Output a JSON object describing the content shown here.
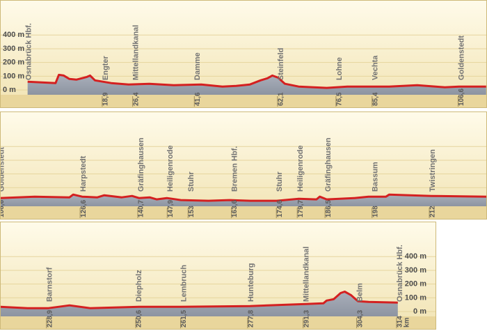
{
  "chart_data": [
    {
      "type": "line",
      "color": "#d42020",
      "xlim": [
        -6.8,
        113.2
      ],
      "ylim": [
        -35,
        655
      ],
      "yticks": [
        {
          "value": 0,
          "label": "0 m"
        },
        {
          "value": 100,
          "label": "100 m"
        },
        {
          "value": 200,
          "label": "200 m"
        },
        {
          "value": 300,
          "label": "300 m"
        },
        {
          "value": 400,
          "label": "400 m"
        }
      ],
      "yaxis_side": "left",
      "grid": true,
      "x": [
        0,
        6.9,
        7.7,
        8.9,
        10.3,
        12.0,
        14.6,
        15.4,
        16.6,
        20.6,
        24.9,
        30.0,
        36.0,
        42.8,
        48.0,
        51.4,
        54.8,
        57.4,
        59.1,
        60.3,
        61.7,
        63.4,
        66.8,
        73.7,
        78.8,
        84.0,
        89.1,
        96.0,
        102.8,
        106.3,
        113.0
      ],
      "values": [
        60,
        50,
        110,
        105,
        80,
        75,
        95,
        105,
        70,
        50,
        40,
        45,
        35,
        40,
        25,
        30,
        40,
        70,
        85,
        105,
        90,
        45,
        25,
        15,
        25,
        25,
        25,
        35,
        20,
        25,
        25
      ],
      "stations": [
        {
          "name": "Osnabrück Hbf.",
          "km": 0
        },
        {
          "name": "Engter",
          "km": 18.9
        },
        {
          "name": "Mittellandkanal",
          "km": 26.4
        },
        {
          "name": "Damme",
          "km": 41.6
        },
        {
          "name": "Steinfeld",
          "km": 62.1
        },
        {
          "name": "Lohne",
          "km": 76.5
        },
        {
          "name": "Vechta",
          "km": 85.4
        },
        {
          "name": "Goldenstedt",
          "km": 106.6
        }
      ],
      "xticks": [
        {
          "value": 18.9,
          "label": "18,9"
        },
        {
          "value": 26.4,
          "label": "26,4"
        },
        {
          "value": 41.6,
          "label": "41,6"
        },
        {
          "value": 62.1,
          "label": "62,1"
        },
        {
          "value": 76.5,
          "label": "76,5"
        },
        {
          "value": 85.4,
          "label": "85,4"
        },
        {
          "value": 106.6,
          "label": "106,6"
        }
      ]
    },
    {
      "type": "line",
      "color": "#d42020",
      "xlim": [
        106.5,
        225.6
      ],
      "ylim": [
        -35,
        655
      ],
      "yticks": [
        0,
        100,
        200,
        300,
        400
      ],
      "yaxis_side": "none",
      "grid": true,
      "x": [
        106.5,
        115.0,
        123.5,
        124.4,
        126.6,
        130.3,
        132.0,
        136.3,
        138.8,
        140.5,
        143.1,
        144.8,
        147.3,
        150.7,
        157.5,
        162.6,
        167.7,
        174.2,
        179.6,
        183.9,
        184.7,
        186.4,
        193.2,
        196.6,
        200.9,
        201.7,
        212,
        225.6
      ],
      "values": [
        25,
        35,
        30,
        50,
        35,
        30,
        45,
        30,
        40,
        25,
        30,
        15,
        25,
        10,
        5,
        10,
        5,
        5,
        20,
        15,
        35,
        15,
        25,
        35,
        35,
        50,
        40,
        35
      ],
      "stations": [
        {
          "name": "Goldenstedt",
          "km": 106.6
        },
        {
          "name": "Harpstedt",
          "km": 126.6
        },
        {
          "name": "Gräfinghausen",
          "km": 140.7
        },
        {
          "name": "Heiligenrode",
          "km": 147.9
        },
        {
          "name": "Stuhr",
          "km": 153
        },
        {
          "name": "Bremen Hbf.",
          "km": 163.6
        },
        {
          "name": "Stuhr",
          "km": 174.6
        },
        {
          "name": "Heiligenrode",
          "km": 179.7
        },
        {
          "name": "Gräfinghausen",
          "km": 186.5
        },
        {
          "name": "Bassum",
          "km": 198
        },
        {
          "name": "Twistringen",
          "km": 212
        }
      ],
      "xticks": [
        {
          "value": 106.6,
          "label": "106,6"
        },
        {
          "value": 126.6,
          "label": "126,6"
        },
        {
          "value": 140.7,
          "label": "140,7"
        },
        {
          "value": 147.9,
          "label": "147,9"
        },
        153,
        {
          "value": 163.6,
          "label": "163,6"
        },
        {
          "value": 174.6,
          "label": "174,6"
        },
        {
          "value": 179.7,
          "label": "179,7"
        },
        {
          "value": 186.5,
          "label": "186,5"
        },
        198,
        212
      ]
    },
    {
      "type": "line",
      "color": "#d42020",
      "xlim": [
        217.1,
        314.0
      ],
      "ylim": [
        -35,
        655
      ],
      "yticks": [
        {
          "value": 0,
          "label": "0 m"
        },
        {
          "value": 100,
          "label": "100 m"
        },
        {
          "value": 200,
          "label": "200 m"
        },
        {
          "value": 300,
          "label": "300 m"
        },
        {
          "value": 400,
          "label": "400 m"
        }
      ],
      "yaxis_side": "right",
      "grid": true,
      "x_unit": "km",
      "x": [
        217.1,
        223.8,
        228.9,
        234.0,
        239.0,
        250.9,
        261.0,
        277.9,
        291.5,
        295.7,
        296.5,
        298.2,
        299.9,
        300.9,
        302.4,
        304.1,
        306.7,
        313.8
      ],
      "values": [
        35,
        25,
        25,
        45,
        25,
        35,
        35,
        40,
        55,
        60,
        80,
        90,
        135,
        145,
        120,
        75,
        70,
        65
      ],
      "stations": [
        {
          "name": "Barnstorf",
          "km": 228.9
        },
        {
          "name": "Diepholz",
          "km": 250.6
        },
        {
          "name": "Lembruch",
          "km": 261.5
        },
        {
          "name": "Hunteburg",
          "km": 277.8
        },
        {
          "name": "Mittellandkanal",
          "km": 291.3
        },
        {
          "name": "Belm",
          "km": 304.3
        },
        {
          "name": "Osnabrück Hbf.",
          "km": 314
        }
      ],
      "xticks": [
        {
          "value": 228.9,
          "label": "228,9"
        },
        {
          "value": 250.6,
          "label": "250,6"
        },
        {
          "value": 261.5,
          "label": "261,5"
        },
        {
          "value": 277.8,
          "label": "277,8"
        },
        {
          "value": 291.3,
          "label": "291,3"
        },
        {
          "value": 304.3,
          "label": "304,3"
        },
        314
      ]
    }
  ]
}
